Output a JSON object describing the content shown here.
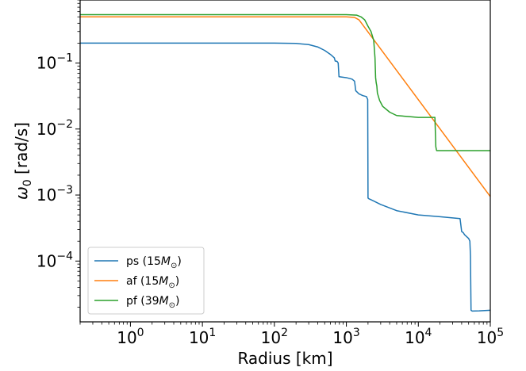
{
  "chart_data": {
    "type": "line",
    "title": "",
    "xlabel": "Radius [km]",
    "ylabel_symbol": "ω",
    "ylabel_sub": "0",
    "ylabel_unit": " [rad/s]",
    "xscale": "log",
    "yscale": "log",
    "xlim": [
      0.2,
      100000
    ],
    "ylim": [
      1.2e-05,
      0.9
    ],
    "legend_position": "lower-left",
    "grid": false,
    "x_ticks": [
      {
        "value": 1,
        "base": "10",
        "exp": "0"
      },
      {
        "value": 10,
        "base": "10",
        "exp": "1"
      },
      {
        "value": 100,
        "base": "10",
        "exp": "2"
      },
      {
        "value": 1000,
        "base": "10",
        "exp": "3"
      },
      {
        "value": 10000,
        "base": "10",
        "exp": "4"
      },
      {
        "value": 100000,
        "base": "10",
        "exp": "5"
      }
    ],
    "y_ticks": [
      {
        "value": 0.0001,
        "base": "10",
        "exp": "−4"
      },
      {
        "value": 0.001,
        "base": "10",
        "exp": "−3"
      },
      {
        "value": 0.01,
        "base": "10",
        "exp": "−2"
      },
      {
        "value": 0.1,
        "base": "10",
        "exp": "−1"
      }
    ],
    "series": [
      {
        "name": "ps",
        "mass_label": "15",
        "color": "#1f77b4",
        "x": [
          0.2,
          10,
          100,
          200,
          300,
          400,
          500,
          600,
          680,
          700,
          740,
          770,
          790,
          1000,
          1200,
          1300,
          1350,
          1500,
          1700,
          1900,
          1980,
          2000,
          2050,
          2200,
          3000,
          5000,
          10000,
          20000,
          30000,
          38000,
          40000,
          42000,
          44000,
          50000,
          52000,
          53000,
          54000,
          56000,
          70000,
          100000
        ],
        "y": [
          0.2,
          0.2,
          0.2,
          0.198,
          0.19,
          0.175,
          0.155,
          0.135,
          0.12,
          0.107,
          0.106,
          0.1,
          0.062,
          0.06,
          0.057,
          0.053,
          0.038,
          0.034,
          0.032,
          0.031,
          0.028,
          0.0009,
          0.00088,
          0.00085,
          0.00072,
          0.00058,
          0.0005,
          0.00047,
          0.00045,
          0.00044,
          0.00028,
          0.00027,
          0.00025,
          0.00022,
          0.0002,
          0.00012,
          1.8e-05,
          1.75e-05,
          1.76e-05,
          1.8e-05
        ]
      },
      {
        "name": "af",
        "mass_label": "15",
        "color": "#ff7f0e",
        "x": [
          0.2,
          1000,
          1300,
          1500,
          100000
        ],
        "y": [
          0.5,
          0.5,
          0.49,
          0.45,
          0.00095
        ]
      },
      {
        "name": "pf",
        "mass_label": "39",
        "color": "#2ca02c",
        "x": [
          0.2,
          1000,
          1400,
          1600,
          1800,
          2000,
          2200,
          2400,
          2500,
          2550,
          2600,
          2650,
          2700,
          2900,
          3200,
          4000,
          5000,
          7000,
          10000,
          14000,
          17000,
          17500,
          17800,
          18000,
          30000,
          100000
        ],
        "y": [
          0.54,
          0.54,
          0.53,
          0.5,
          0.45,
          0.36,
          0.3,
          0.22,
          0.12,
          0.06,
          0.05,
          0.045,
          0.035,
          0.027,
          0.022,
          0.018,
          0.016,
          0.0155,
          0.015,
          0.015,
          0.015,
          0.0054,
          0.0049,
          0.0047,
          0.0047,
          0.0047
        ]
      }
    ]
  }
}
